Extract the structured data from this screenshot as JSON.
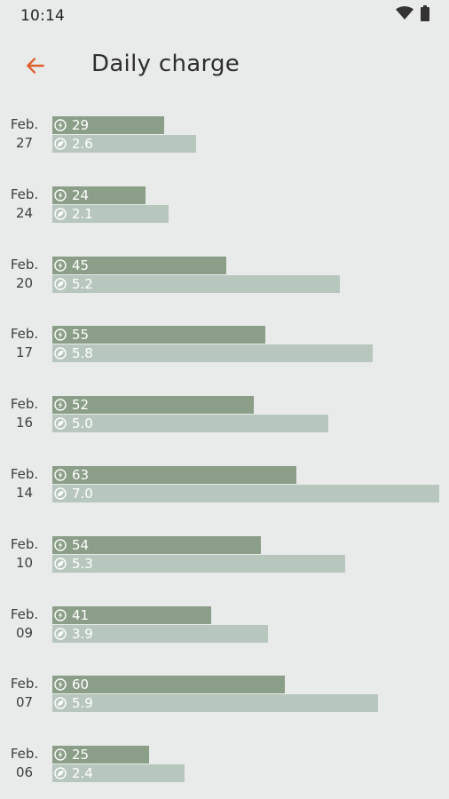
{
  "status_bar": {
    "time": "10:14",
    "icons": [
      "wifi-icon",
      "battery-icon"
    ]
  },
  "app_bar": {
    "back_icon": "arrow-left-icon",
    "title": "Daily charge",
    "accent_color": "#e0602c"
  },
  "colors": {
    "energy_bar": "#8b9e88",
    "charge_bar": "#b8c7be",
    "background": "#e8ebea"
  },
  "chart_data": {
    "type": "bar",
    "orientation": "horizontal",
    "categories": [
      [
        "Feb.",
        "27"
      ],
      [
        "Feb.",
        "24"
      ],
      [
        "Feb.",
        "20"
      ],
      [
        "Feb.",
        "17"
      ],
      [
        "Feb.",
        "16"
      ],
      [
        "Feb.",
        "14"
      ],
      [
        "Feb.",
        "10"
      ],
      [
        "Feb.",
        "09"
      ],
      [
        "Feb.",
        "07"
      ],
      [
        "Feb.",
        "06"
      ]
    ],
    "series": [
      {
        "icon": "charge-bolt-icon",
        "values": [
          29,
          24,
          45,
          55,
          52,
          63,
          54,
          41,
          60,
          25
        ],
        "labels": [
          "29",
          "24",
          "45",
          "55",
          "52",
          "63",
          "54",
          "41",
          "60",
          "25"
        ],
        "max": 100
      },
      {
        "icon": "energy-leaf-icon",
        "values": [
          2.6,
          2.1,
          5.2,
          5.8,
          5.0,
          7.0,
          5.3,
          3.9,
          5.9,
          2.4
        ],
        "labels": [
          "2.6",
          "2.1",
          "5.2",
          "5.8",
          "5.0",
          "7.0",
          "5.3",
          "3.9",
          "5.9",
          "2.4"
        ],
        "max": 7.0
      }
    ]
  }
}
